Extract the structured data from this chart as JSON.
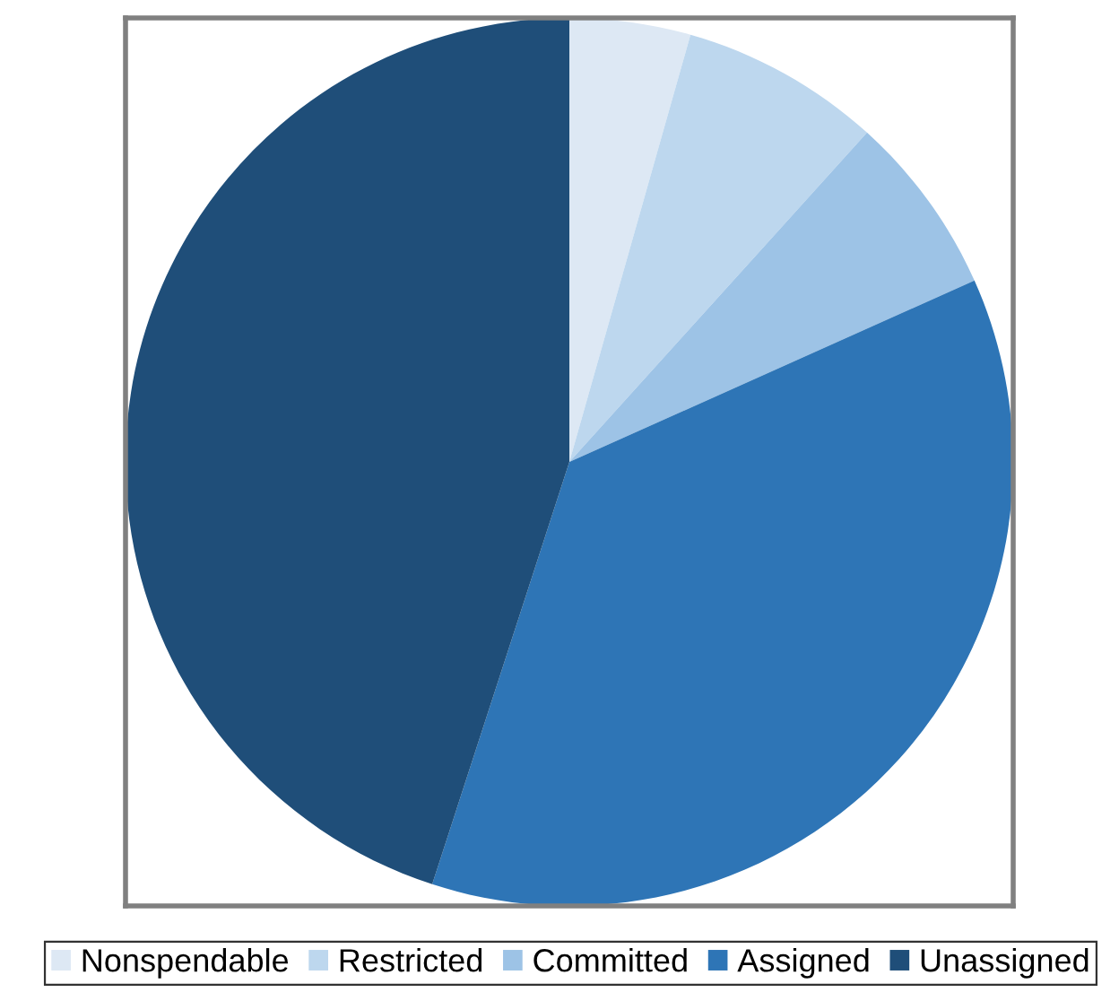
{
  "chart_data": {
    "type": "pie",
    "categories": [
      "Nonspendable",
      "Restricted",
      "Committed",
      "Assigned",
      "Unassigned"
    ],
    "values": [
      4.4,
      7.3,
      6.6,
      36.7,
      45.0
    ],
    "colors": [
      "#dde8f4",
      "#bdd7ee",
      "#9dc3e6",
      "#2e75b6",
      "#1f4e79"
    ],
    "legend": "bottom"
  }
}
